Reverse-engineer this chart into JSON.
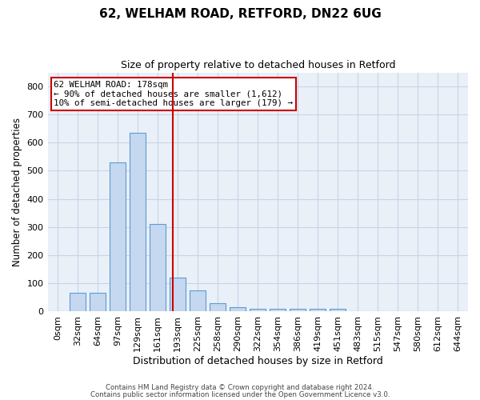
{
  "title": "62, WELHAM ROAD, RETFORD, DN22 6UG",
  "subtitle": "Size of property relative to detached houses in Retford",
  "xlabel": "Distribution of detached houses by size in Retford",
  "ylabel": "Number of detached properties",
  "bar_labels": [
    "0sqm",
    "32sqm",
    "64sqm",
    "97sqm",
    "129sqm",
    "161sqm",
    "193sqm",
    "225sqm",
    "258sqm",
    "290sqm",
    "322sqm",
    "354sqm",
    "386sqm",
    "419sqm",
    "451sqm",
    "483sqm",
    "515sqm",
    "547sqm",
    "580sqm",
    "612sqm",
    "644sqm"
  ],
  "bar_heights": [
    0,
    65,
    65,
    530,
    635,
    310,
    120,
    75,
    30,
    15,
    10,
    10,
    10,
    8,
    8,
    0,
    0,
    0,
    0,
    0,
    0
  ],
  "bar_color": "#c5d8ef",
  "bar_edge_color": "#5b9bd5",
  "bg_color": "#eaf0f8",
  "grid_color": "#d0daea",
  "vline_color": "#cc0000",
  "annotation_text": "62 WELHAM ROAD: 178sqm\n← 90% of detached houses are smaller (1,612)\n10% of semi-detached houses are larger (179) →",
  "annotation_box_color": "#ffffff",
  "annotation_box_edge": "#cc0000",
  "ylim": [
    0,
    850
  ],
  "yticks": [
    0,
    100,
    200,
    300,
    400,
    500,
    600,
    700,
    800
  ],
  "footer1": "Contains HM Land Registry data © Crown copyright and database right 2024.",
  "footer2": "Contains public sector information licensed under the Open Government Licence v3.0."
}
